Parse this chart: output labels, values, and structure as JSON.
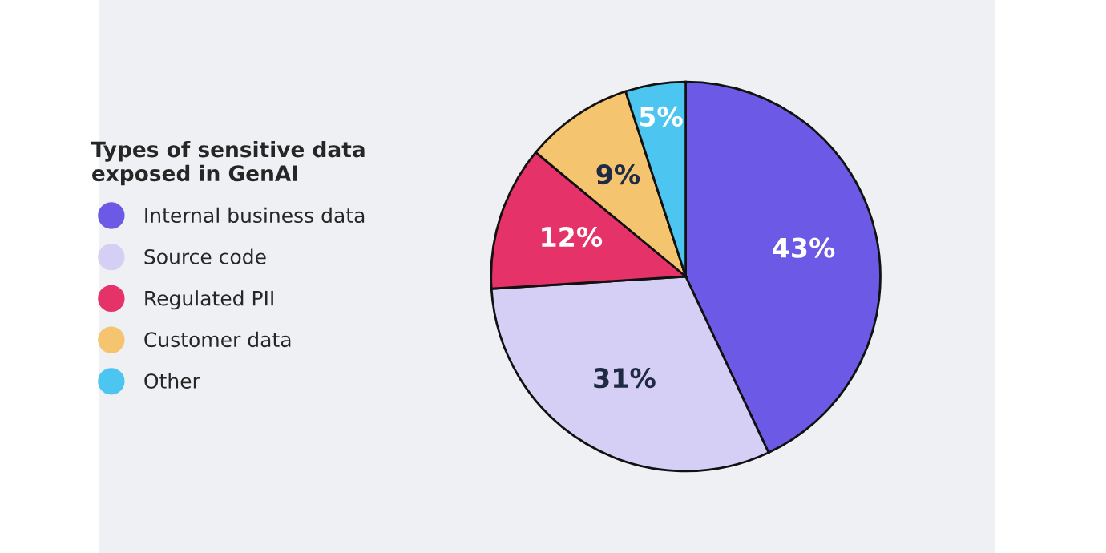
{
  "chart_data": {
    "type": "pie",
    "legend_title": "Types of sensitive data\nexposed in GenAI",
    "categories": [
      "Internal business data",
      "Source code",
      "Regulated PII",
      "Customer data",
      "Other"
    ],
    "values": [
      43,
      31,
      12,
      9,
      5
    ],
    "colors": [
      "#6c5ae6",
      "#d6cff5",
      "#e5336a",
      "#f5c46e",
      "#4cc6f0"
    ],
    "value_labels": [
      "43%",
      "31%",
      "12%",
      "9%",
      "5%"
    ],
    "legend": "left"
  }
}
